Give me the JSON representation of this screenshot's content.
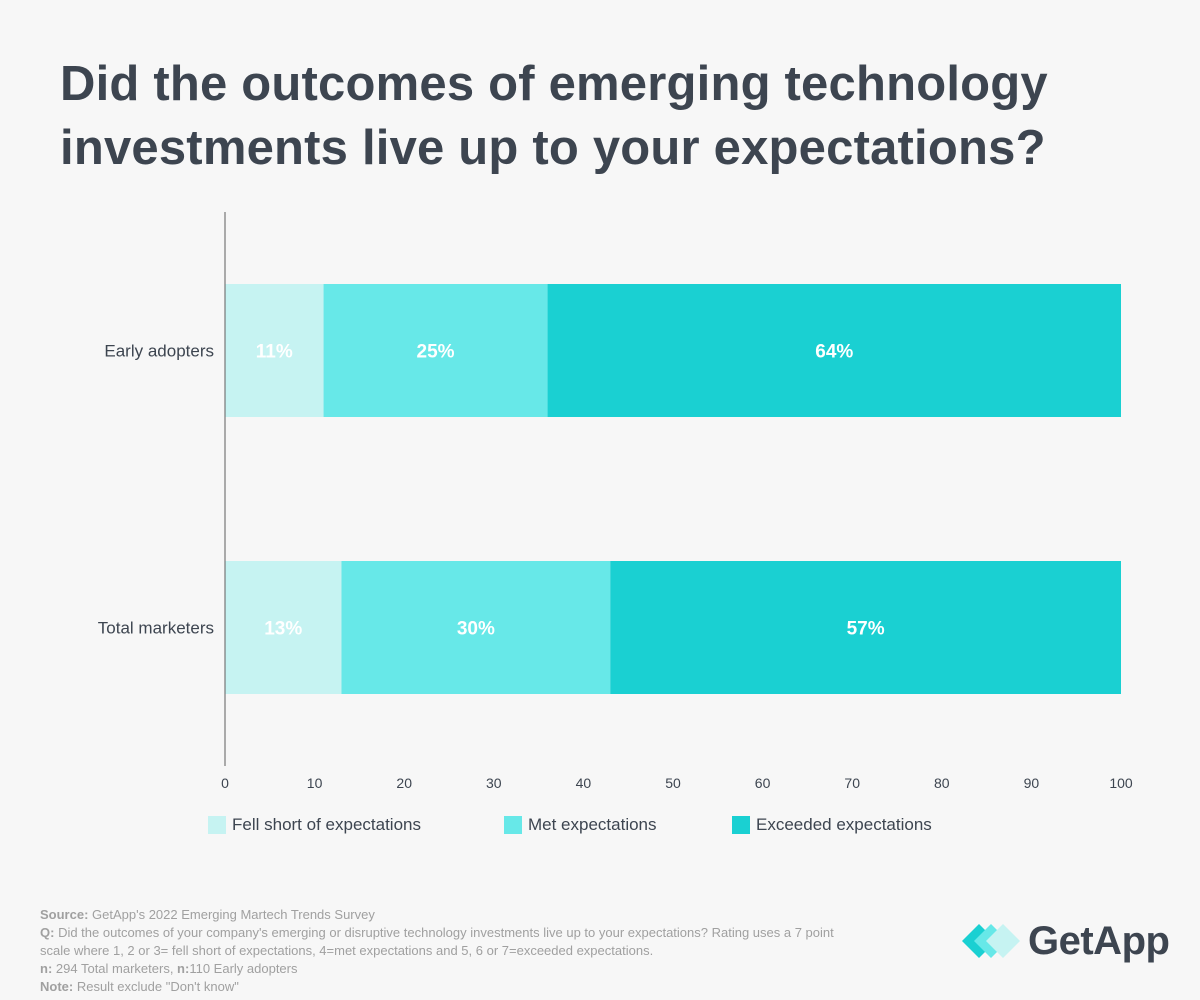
{
  "title": "Did the outcomes of emerging technology investments live up to your expectations?",
  "chart_data": {
    "type": "bar",
    "orientation": "horizontal",
    "stacked": true,
    "categories": [
      "Early adopters",
      "Total marketers"
    ],
    "series": [
      {
        "name": "Fell short of expectations",
        "values": [
          11,
          13
        ],
        "labels": [
          "11%",
          "13%"
        ],
        "color": "#c6f3f2"
      },
      {
        "name": "Met expectations",
        "values": [
          25,
          30
        ],
        "labels": [
          "25%",
          "30%"
        ],
        "color": "#67e8e8"
      },
      {
        "name": "Exceeded expectations",
        "values": [
          64,
          57
        ],
        "labels": [
          "64%",
          "57%"
        ],
        "color": "#1ad0d2"
      }
    ],
    "xlim": [
      0,
      100
    ],
    "xticks": [
      0,
      10,
      20,
      30,
      40,
      50,
      60,
      70,
      80,
      90,
      100
    ],
    "legend_position": "bottom"
  },
  "notes": {
    "source_label": "Source:",
    "source_text": " GetApp's 2022 Emerging Martech Trends Survey",
    "q_label": "Q:",
    "q_text": " Did the outcomes of your company's emerging or disruptive technology investments live up to your expectations? Rating uses a 7 point scale where 1, 2 or 3= fell short of expectations, 4=met expectations and 5, 6 or 7=exceeded expectations.",
    "n_label": "n:",
    "n_text": " 294 Total marketers, ",
    "n2_label": "n:",
    "n2_text": "110 Early adopters",
    "note_label": "Note:",
    "note_text": " Result exclude \"Don't know\""
  },
  "logo": {
    "text": "GetApp",
    "colors": [
      "#1ad0d2",
      "#67e8e8",
      "#c6f3f2"
    ]
  }
}
